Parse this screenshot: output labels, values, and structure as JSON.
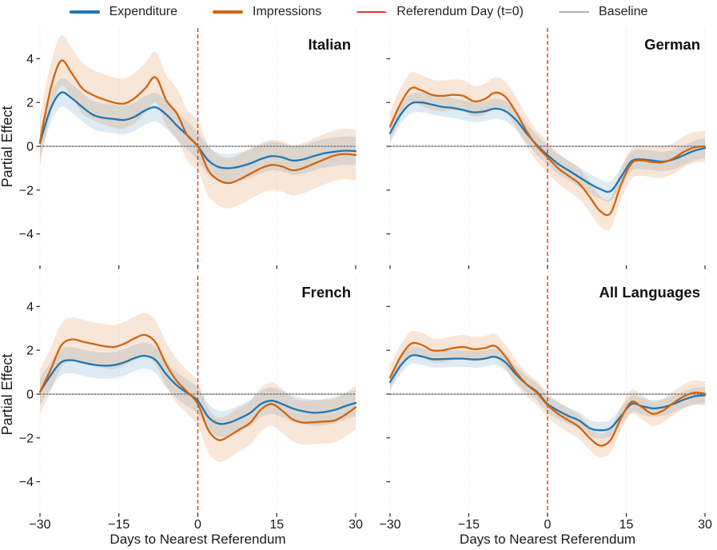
{
  "legend": {
    "items": [
      {
        "label": "Expenditure",
        "color": "#1f77b4",
        "style": "solid-thick"
      },
      {
        "label": "Impressions",
        "color": "#d4640b",
        "style": "solid-thick"
      },
      {
        "label": "Referendum Day (t=0)",
        "color": "#e8342a",
        "style": "dashed"
      },
      {
        "label": "Baseline",
        "color": "#b3b3b3",
        "style": "solid-thin"
      }
    ]
  },
  "axes": {
    "xlabel": "Days to Nearest Referendum",
    "ylabel": "Partial Effect",
    "xlim": [
      -30,
      30
    ],
    "ylim": [
      -5.4,
      5.4
    ],
    "xticks": [
      -30,
      -15,
      0,
      15,
      30
    ],
    "xtick_labels": [
      "−30",
      "−15",
      "0",
      "15",
      "30"
    ],
    "yticks": [
      4,
      2,
      0,
      -2,
      -4
    ],
    "ytick_labels": [
      "4",
      "2",
      "0",
      "−2",
      "−4"
    ],
    "grid": "vertical-dotted",
    "referendum_line_x": 0,
    "baseline_y": 0
  },
  "colors": {
    "referendum_line": "#e8342a",
    "baseline_solid": "#b3b3b3",
    "baseline_dotted": "#3a3a3a",
    "grid": "#e0e0e0",
    "tick": "#262626",
    "text": "#1a1a1a",
    "title": "#111111"
  },
  "chart_data": [
    {
      "type": "line",
      "title": "Italian",
      "x": [
        -30,
        -28,
        -26,
        -24,
        -22,
        -20,
        -18,
        -16,
        -14,
        -12,
        -10,
        -8,
        -6,
        -4,
        -2,
        0,
        2,
        4,
        6,
        8,
        10,
        12,
        14,
        16,
        18,
        20,
        22,
        24,
        26,
        28,
        30
      ],
      "series": [
        {
          "name": "Expenditure",
          "color": "#1f77b4",
          "band_color": "rgba(31,119,180,0.15)",
          "ci": 0.65,
          "values": [
            0.15,
            1.7,
            2.45,
            2.2,
            1.8,
            1.45,
            1.3,
            1.25,
            1.2,
            1.35,
            1.64,
            1.78,
            1.45,
            0.95,
            0.5,
            0.0,
            -0.65,
            -0.95,
            -1.0,
            -0.92,
            -0.78,
            -0.58,
            -0.45,
            -0.5,
            -0.65,
            -0.6,
            -0.45,
            -0.32,
            -0.25,
            -0.2,
            -0.22
          ]
        },
        {
          "name": "Impressions",
          "color": "#d4640b",
          "band_color": "rgba(212,100,11,0.16)",
          "ci": 1.15,
          "values": [
            0.2,
            2.6,
            3.9,
            3.35,
            2.65,
            2.35,
            2.15,
            2.0,
            1.95,
            2.2,
            2.65,
            3.15,
            2.1,
            1.5,
            0.5,
            0.0,
            -1.1,
            -1.55,
            -1.68,
            -1.5,
            -1.25,
            -1.0,
            -0.85,
            -0.92,
            -1.1,
            -1.0,
            -0.8,
            -0.6,
            -0.42,
            -0.35,
            -0.4
          ]
        }
      ]
    },
    {
      "type": "line",
      "title": "German",
      "x": [
        -30,
        -28,
        -26,
        -24,
        -22,
        -20,
        -18,
        -16,
        -14,
        -12,
        -10,
        -8,
        -6,
        -4,
        -2,
        0,
        2,
        4,
        6,
        8,
        10,
        12,
        14,
        16,
        18,
        20,
        22,
        24,
        26,
        28,
        30
      ],
      "series": [
        {
          "name": "Expenditure",
          "color": "#1f77b4",
          "band_color": "rgba(31,119,180,0.15)",
          "ci": 0.45,
          "values": [
            0.6,
            1.45,
            1.95,
            2.0,
            1.9,
            1.8,
            1.75,
            1.65,
            1.55,
            1.6,
            1.72,
            1.6,
            1.2,
            0.6,
            0.05,
            -0.4,
            -0.8,
            -1.1,
            -1.4,
            -1.7,
            -1.95,
            -2.05,
            -1.4,
            -0.68,
            -0.6,
            -0.65,
            -0.7,
            -0.6,
            -0.4,
            -0.2,
            -0.08
          ]
        },
        {
          "name": "Impressions",
          "color": "#d4640b",
          "band_color": "rgba(212,100,11,0.16)",
          "ci": 0.7,
          "values": [
            0.9,
            1.95,
            2.65,
            2.55,
            2.35,
            2.3,
            2.35,
            2.3,
            2.05,
            2.15,
            2.45,
            2.25,
            1.55,
            0.7,
            0.0,
            -0.5,
            -1.0,
            -1.35,
            -1.7,
            -2.3,
            -2.95,
            -3.05,
            -1.75,
            -0.78,
            -0.65,
            -0.72,
            -0.73,
            -0.55,
            -0.25,
            -0.05,
            0.0
          ]
        }
      ]
    },
    {
      "type": "line",
      "title": "French",
      "x": [
        -30,
        -28,
        -26,
        -24,
        -22,
        -20,
        -18,
        -16,
        -14,
        -12,
        -10,
        -8,
        -6,
        -4,
        -2,
        0,
        2,
        4,
        6,
        8,
        10,
        12,
        14,
        16,
        18,
        20,
        22,
        24,
        26,
        28,
        30
      ],
      "series": [
        {
          "name": "Expenditure",
          "color": "#1f77b4",
          "band_color": "rgba(31,119,180,0.15)",
          "ci": 0.6,
          "values": [
            0.1,
            0.85,
            1.45,
            1.55,
            1.45,
            1.35,
            1.3,
            1.32,
            1.45,
            1.65,
            1.75,
            1.55,
            0.9,
            0.4,
            0.05,
            -0.3,
            -1.05,
            -1.35,
            -1.3,
            -1.1,
            -0.85,
            -0.45,
            -0.3,
            -0.45,
            -0.65,
            -0.78,
            -0.85,
            -0.82,
            -0.72,
            -0.55,
            -0.4
          ]
        },
        {
          "name": "Impressions",
          "color": "#d4640b",
          "band_color": "rgba(212,100,11,0.16)",
          "ci": 1.0,
          "values": [
            0.1,
            1.1,
            2.2,
            2.5,
            2.4,
            2.3,
            2.2,
            2.15,
            2.3,
            2.55,
            2.7,
            2.35,
            1.35,
            0.6,
            0.1,
            -0.45,
            -1.65,
            -2.1,
            -1.9,
            -1.6,
            -1.3,
            -0.7,
            -0.45,
            -0.75,
            -1.15,
            -1.3,
            -1.28,
            -1.25,
            -1.2,
            -0.95,
            -0.6
          ]
        }
      ]
    },
    {
      "type": "line",
      "title": "All Languages",
      "x": [
        -30,
        -28,
        -26,
        -24,
        -22,
        -20,
        -18,
        -16,
        -14,
        -12,
        -10,
        -8,
        -6,
        -4,
        -2,
        0,
        2,
        4,
        6,
        8,
        10,
        12,
        14,
        16,
        18,
        20,
        22,
        24,
        26,
        28,
        30
      ],
      "series": [
        {
          "name": "Expenditure",
          "color": "#1f77b4",
          "band_color": "rgba(31,119,180,0.15)",
          "ci": 0.38,
          "values": [
            0.55,
            1.3,
            1.75,
            1.72,
            1.6,
            1.6,
            1.62,
            1.62,
            1.58,
            1.62,
            1.7,
            1.45,
            0.9,
            0.45,
            0.1,
            -0.45,
            -0.75,
            -1.0,
            -1.2,
            -1.55,
            -1.65,
            -1.55,
            -1.0,
            -0.45,
            -0.55,
            -0.65,
            -0.6,
            -0.45,
            -0.25,
            -0.1,
            -0.05
          ]
        },
        {
          "name": "Impressions",
          "color": "#d4640b",
          "band_color": "rgba(212,100,11,0.16)",
          "ci": 0.55,
          "values": [
            0.75,
            1.7,
            2.3,
            2.25,
            2.0,
            2.0,
            2.1,
            2.15,
            2.05,
            2.1,
            2.2,
            1.7,
            1.0,
            0.45,
            0.05,
            -0.5,
            -0.9,
            -1.2,
            -1.5,
            -2.0,
            -2.35,
            -2.1,
            -1.1,
            -0.35,
            -0.6,
            -0.9,
            -0.75,
            -0.4,
            -0.1,
            0.07,
            0.02
          ]
        }
      ]
    }
  ]
}
